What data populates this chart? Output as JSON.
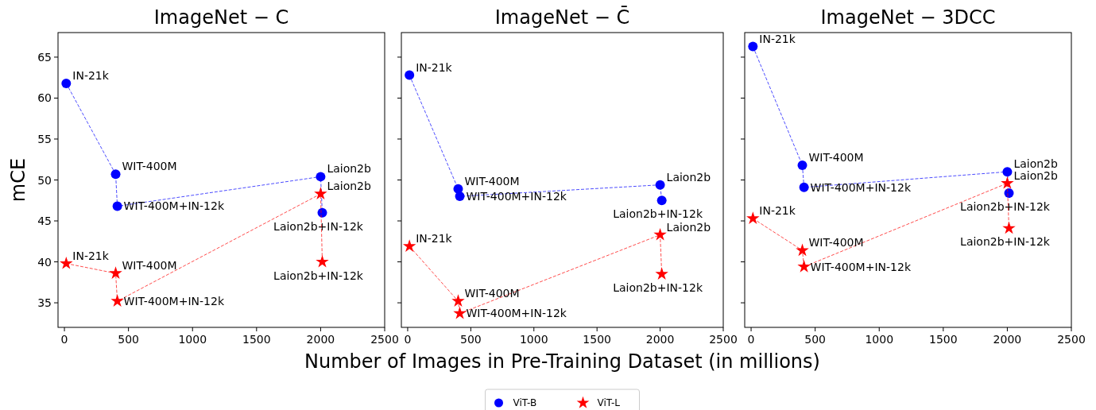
{
  "chart_data": [
    {
      "type": "line",
      "title": "ImageNet − C",
      "ylabel": "mCE",
      "xlim": [
        -50,
        2500
      ],
      "ylim": [
        32,
        68
      ],
      "xticks": [
        0,
        500,
        1000,
        1500,
        2000,
        2500
      ],
      "yticks": [
        35,
        40,
        45,
        50,
        55,
        60,
        65
      ],
      "line_style": "dashed",
      "legend": false,
      "grid": false,
      "series": [
        {
          "color": "#0000ff",
          "marker": "circle",
          "x": [
            14,
            400,
            413,
            2000,
            2013
          ],
          "values": [
            61.8,
            50.7,
            46.8,
            50.4,
            46.0
          ],
          "value_labels": [
            "IN-21k",
            "WIT-400M",
            "WIT-400M+IN-12k",
            "Laion2b",
            "Laion2b+IN-12k"
          ]
        },
        {
          "color": "#ff0000",
          "marker": "star",
          "x": [
            14,
            400,
            413,
            2000,
            2013
          ],
          "values": [
            39.8,
            38.6,
            35.2,
            48.3,
            40.0
          ],
          "value_labels": [
            "IN-21k",
            "WIT-400M",
            "WIT-400M+IN-12k",
            "Laion2b",
            "Laion2b+IN-12k"
          ]
        }
      ]
    },
    {
      "type": "line",
      "title": "ImageNet − C̄",
      "xlabel": "Number of Images in Pre-Training Dataset (in millions)",
      "xlim": [
        -50,
        2500
      ],
      "ylim": [
        32,
        68
      ],
      "xticks": [
        0,
        500,
        1000,
        1500,
        2000,
        2500
      ],
      "yticks": [
        35,
        40,
        45,
        50,
        55,
        60,
        65
      ],
      "tick_labels": "x",
      "line_style": "dashed",
      "legend": "bottom",
      "grid": false,
      "series": [
        {
          "name": "ViT-B",
          "color": "#0000ff",
          "marker": "circle",
          "x": [
            14,
            400,
            413,
            2000,
            2013
          ],
          "values": [
            62.8,
            48.9,
            48.0,
            49.4,
            47.5
          ],
          "value_labels": [
            "IN-21k",
            "WIT-400M",
            "WIT-400M+IN-12k",
            "Laion2b",
            "Laion2b+IN-12k"
          ]
        },
        {
          "name": "ViT-L",
          "color": "#ff0000",
          "marker": "star",
          "x": [
            14,
            400,
            413,
            2000,
            2013
          ],
          "values": [
            41.9,
            35.2,
            33.7,
            43.3,
            38.5
          ],
          "value_labels": [
            "IN-21k",
            "WIT-400M",
            "WIT-400M+IN-12k",
            "Laion2b",
            "Laion2b+IN-12k"
          ]
        }
      ]
    },
    {
      "type": "line",
      "title": "ImageNet − 3DCC",
      "xlim": [
        -50,
        2500
      ],
      "ylim": [
        32,
        68
      ],
      "xticks": [
        0,
        500,
        1000,
        1500,
        2000,
        2500
      ],
      "yticks": [
        35,
        40,
        45,
        50,
        55,
        60,
        65
      ],
      "tick_labels": "x",
      "line_style": "dashed",
      "legend": false,
      "grid": false,
      "series": [
        {
          "color": "#0000ff",
          "marker": "circle",
          "x": [
            14,
            400,
            413,
            2000,
            2013
          ],
          "values": [
            66.3,
            51.8,
            49.1,
            51.0,
            48.4
          ],
          "value_labels": [
            "IN-21k",
            "WIT-400M",
            "WIT-400M+IN-12k",
            "Laion2b",
            "Laion2b+IN-12k"
          ]
        },
        {
          "color": "#ff0000",
          "marker": "star",
          "x": [
            14,
            400,
            413,
            2000,
            2013
          ],
          "values": [
            45.3,
            41.4,
            39.4,
            49.6,
            44.1
          ],
          "value_labels": [
            "IN-21k",
            "WIT-400M",
            "WIT-400M+IN-12k",
            "Laion2b",
            "Laion2b+IN-12k"
          ]
        }
      ]
    }
  ]
}
